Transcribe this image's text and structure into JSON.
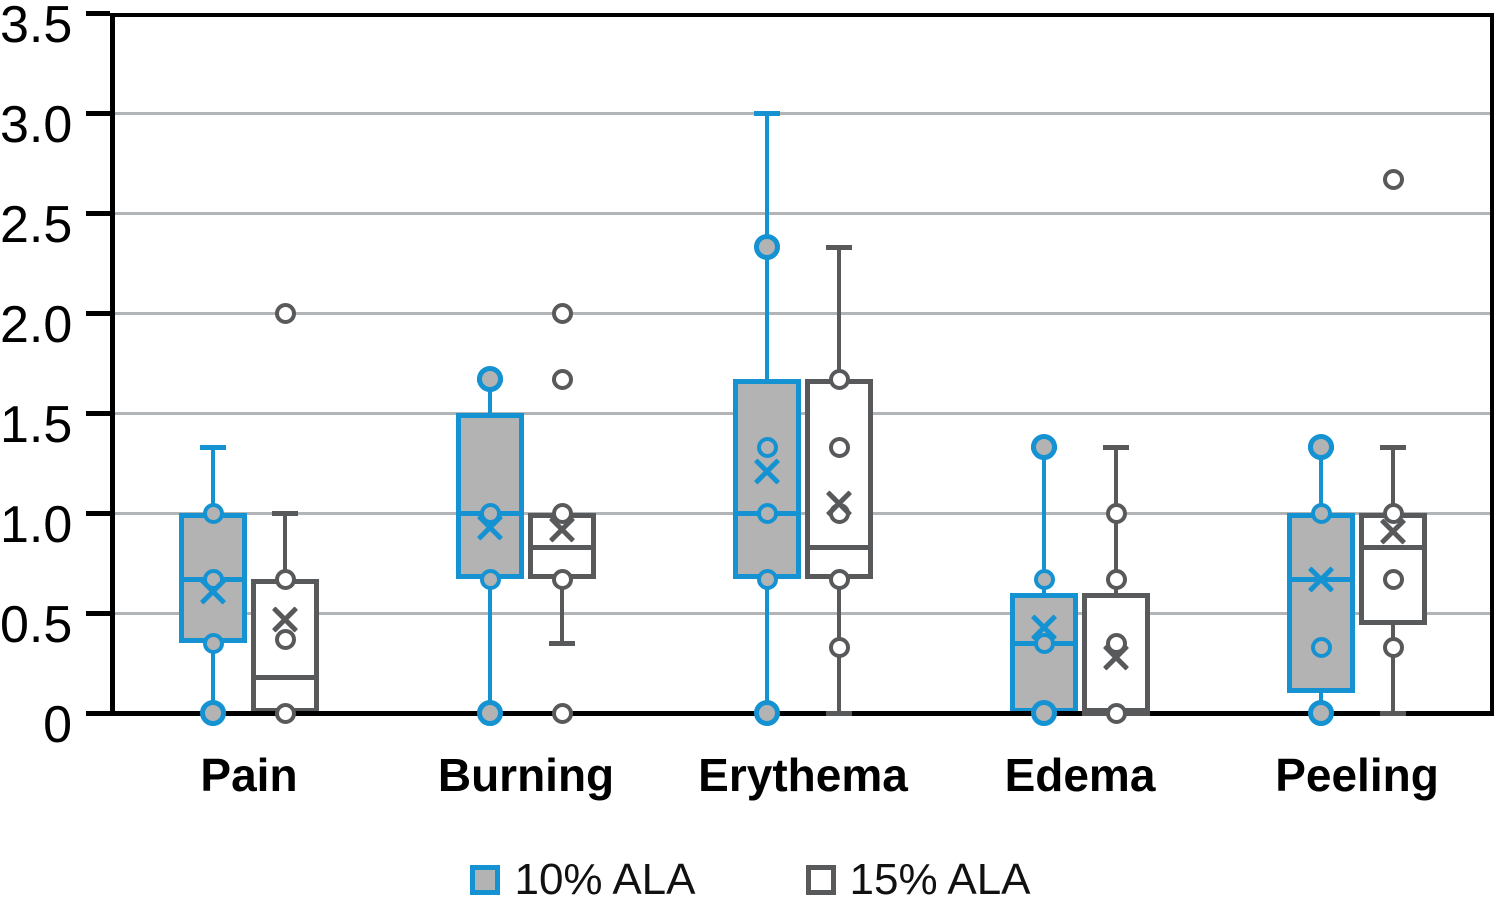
{
  "chart_data": {
    "type": "box",
    "title": "",
    "xlabel": "",
    "ylabel": "",
    "grid": true,
    "legend_position": "bottom",
    "categories": [
      "Pain",
      "Burning",
      "Erythema",
      "Edema",
      "Peeling"
    ],
    "y_axis": {
      "min": 0,
      "max": 3.5,
      "tick_step": 0.5,
      "tick_labels": [
        "0",
        "0.5",
        "1.0",
        "1.5",
        "2.0",
        "2.5",
        "3.0",
        "3.5"
      ]
    },
    "series": [
      {
        "name": "10% ALA",
        "stroke": "#1592D2",
        "box_fill": "#B3B3B3",
        "point_fill": "#B3B3B3",
        "boxes": [
          {
            "category": "Pain",
            "low": 0,
            "q1": 0.35,
            "median": 0.67,
            "q3": 1.0,
            "high": 1.33,
            "mean": 0.61,
            "points": [
              1.0,
              0.67,
              0.35
            ],
            "end_points": [
              0
            ],
            "outliers": [],
            "caps": {
              "top": true,
              "bottom": false
            }
          },
          {
            "category": "Burning",
            "low": 0,
            "q1": 0.67,
            "median": 1.0,
            "q3": 1.5,
            "high": 1.67,
            "mean": 0.93,
            "points": [
              1.0,
              0.67
            ],
            "end_points": [
              1.67,
              0
            ],
            "outliers": [],
            "caps": {
              "top": true,
              "bottom": false
            }
          },
          {
            "category": "Erythema",
            "low": 0,
            "q1": 0.67,
            "median": 1.0,
            "q3": 1.67,
            "high": 3.0,
            "mean": 1.21,
            "points": [
              1.33,
              1.0,
              0.67
            ],
            "end_points": [
              2.33,
              0
            ],
            "outliers": [],
            "caps": {
              "top": true,
              "bottom": false
            }
          },
          {
            "category": "Edema",
            "low": 0,
            "q1": 0,
            "median": 0.35,
            "q3": 0.6,
            "high": 1.33,
            "mean": 0.43,
            "points": [
              0.67,
              0.35
            ],
            "end_points": [
              1.33,
              0
            ],
            "outliers": [],
            "caps": {
              "top": true,
              "bottom": false
            }
          },
          {
            "category": "Peeling",
            "low": 0,
            "q1": 0.1,
            "median": 0.67,
            "q3": 1.0,
            "high": 1.33,
            "mean": 0.67,
            "points": [
              1.0,
              0.33
            ],
            "end_points": [
              1.33,
              0
            ],
            "outliers": [],
            "caps": {
              "top": true,
              "bottom": false
            }
          }
        ]
      },
      {
        "name": "15% ALA",
        "stroke": "#58595B",
        "box_fill": "#FFFFFF",
        "point_fill": "#FFFFFF",
        "boxes": [
          {
            "category": "Pain",
            "low": 0,
            "q1": 0,
            "median": 0.18,
            "q3": 0.67,
            "high": 1.0,
            "mean": 0.47,
            "points": [
              0.67,
              0.37,
              0
            ],
            "end_points": [],
            "outliers": [
              2.0
            ],
            "caps": {
              "top": true,
              "bottom": false
            }
          },
          {
            "category": "Burning",
            "low": 0.35,
            "q1": 0.67,
            "median": 0.83,
            "q3": 1.0,
            "high": 1.0,
            "mean": 0.92,
            "points": [
              1.0,
              0.67,
              0
            ],
            "end_points": [],
            "outliers": [
              2.0,
              1.67
            ],
            "caps": {
              "top": false,
              "bottom": true
            }
          },
          {
            "category": "Erythema",
            "low": 0,
            "q1": 0.67,
            "median": 0.83,
            "q3": 1.67,
            "high": 2.33,
            "mean": 1.05,
            "points": [
              1.67,
              1.33,
              1.0,
              0.67,
              0.33
            ],
            "end_points": [],
            "outliers": [],
            "caps": {
              "top": true,
              "bottom": true
            }
          },
          {
            "category": "Edema",
            "low": 0,
            "q1": 0,
            "median": 0,
            "q3": 0.6,
            "high": 1.33,
            "mean": 0.28,
            "points": [
              1.0,
              0.67,
              0.35,
              0
            ],
            "end_points": [],
            "outliers": [],
            "caps": {
              "top": true,
              "bottom": false
            }
          },
          {
            "category": "Peeling",
            "low": 0,
            "q1": 0.44,
            "median": 0.83,
            "q3": 1.0,
            "high": 1.33,
            "mean": 0.91,
            "points": [
              1.0,
              0.67,
              0.33
            ],
            "end_points": [],
            "outliers": [
              2.67
            ],
            "caps": {
              "top": true,
              "bottom": true
            }
          }
        ]
      }
    ],
    "colors": {
      "axis": "#000000",
      "gridline": "#B2B5B7",
      "series_10_blue": "#1592D2",
      "series_15_gray": "#58595B",
      "box_gray_fill": "#B3B3B3",
      "text": "#000000"
    }
  },
  "legend": {
    "items": [
      {
        "label": "10% ALA"
      },
      {
        "label": "15% ALA"
      }
    ]
  }
}
